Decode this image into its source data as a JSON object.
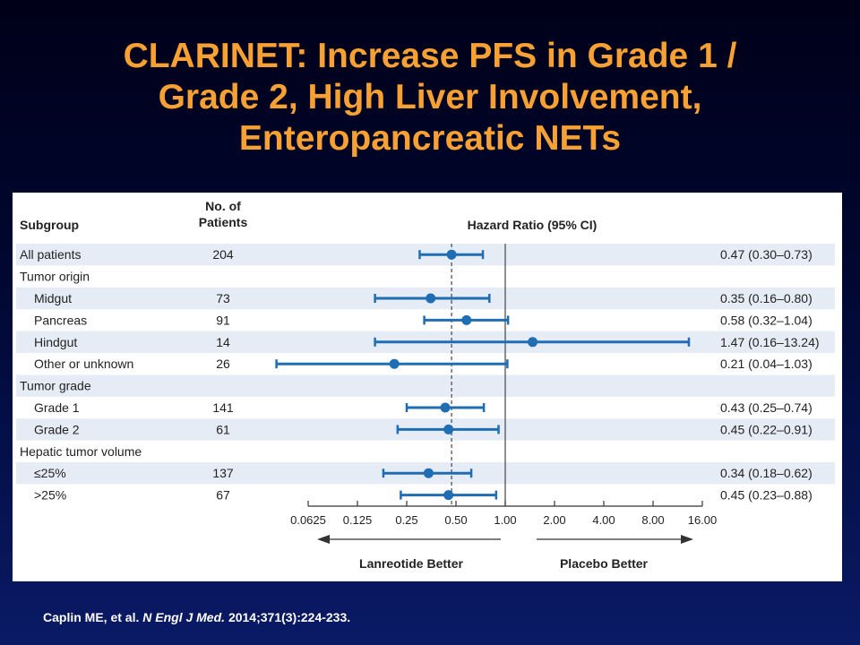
{
  "slide": {
    "title_lines": [
      "CLARINET: Increase PFS in Grade 1 /",
      "Grade 2, High Liver Involvement,",
      "Enteropancreatic NETs"
    ],
    "citation": {
      "authors": "Caplin ME, et al.",
      "journal": "N Engl J Med.",
      "details": "2014;371(3):224-233."
    }
  },
  "colors": {
    "title": "#f7a033",
    "marker": "#1f6db3",
    "stripe": "#e6ecf5",
    "background_top": "#000018",
    "background_bottom": "#0a1a66"
  },
  "chart_data": {
    "type": "forest",
    "headers": {
      "subgroup": "Subgroup",
      "patients_line1": "No. of",
      "patients_line2": "Patients",
      "hazard": "Hazard Ratio (95% CI)"
    },
    "rows": [
      {
        "label": "All patients",
        "indent": false,
        "n": "204",
        "hr": 0.47,
        "lo": 0.3,
        "hi": 0.73,
        "ci_text": "0.47 (0.30–0.73)",
        "shaded": true
      },
      {
        "label": "Tumor origin",
        "indent": false,
        "n": "",
        "hr": null,
        "lo": null,
        "hi": null,
        "ci_text": "",
        "shaded": false
      },
      {
        "label": "Midgut",
        "indent": true,
        "n": "73",
        "hr": 0.35,
        "lo": 0.16,
        "hi": 0.8,
        "ci_text": "0.35 (0.16–0.80)",
        "shaded": true
      },
      {
        "label": "Pancreas",
        "indent": true,
        "n": "91",
        "hr": 0.58,
        "lo": 0.32,
        "hi": 1.04,
        "ci_text": "0.58 (0.32–1.04)",
        "shaded": false
      },
      {
        "label": "Hindgut",
        "indent": true,
        "n": "14",
        "hr": 1.47,
        "lo": 0.16,
        "hi": 13.24,
        "ci_text": "1.47 (0.16–13.24)",
        "shaded": true
      },
      {
        "label": "Other or unknown",
        "indent": true,
        "n": "26",
        "hr": 0.21,
        "lo": 0.04,
        "hi": 1.03,
        "ci_text": "0.21 (0.04–1.03)",
        "shaded": false
      },
      {
        "label": "Tumor grade",
        "indent": false,
        "n": "",
        "hr": null,
        "lo": null,
        "hi": null,
        "ci_text": "",
        "shaded": true
      },
      {
        "label": "Grade 1",
        "indent": true,
        "n": "141",
        "hr": 0.43,
        "lo": 0.25,
        "hi": 0.74,
        "ci_text": "0.43 (0.25–0.74)",
        "shaded": false
      },
      {
        "label": "Grade 2",
        "indent": true,
        "n": "61",
        "hr": 0.45,
        "lo": 0.22,
        "hi": 0.91,
        "ci_text": "0.45 (0.22–0.91)",
        "shaded": true
      },
      {
        "label": "Hepatic tumor volume",
        "indent": false,
        "n": "",
        "hr": null,
        "lo": null,
        "hi": null,
        "ci_text": "",
        "shaded": false
      },
      {
        "label": "≤25%",
        "indent": true,
        "n": "137",
        "hr": 0.34,
        "lo": 0.18,
        "hi": 0.62,
        "ci_text": "0.34 (0.18–0.62)",
        "shaded": true
      },
      {
        "label": ">25%",
        "indent": true,
        "n": "67",
        "hr": 0.45,
        "lo": 0.23,
        "hi": 0.88,
        "ci_text": "0.45 (0.23–0.88)",
        "shaded": false
      }
    ],
    "x_scale": "log2",
    "x_range": [
      0.0625,
      16
    ],
    "x_ticks": [
      {
        "value": 0.0625,
        "label": "0.0625"
      },
      {
        "value": 0.125,
        "label": "0.125"
      },
      {
        "value": 0.25,
        "label": "0.25"
      },
      {
        "value": 0.5,
        "label": "0.50"
      },
      {
        "value": 1,
        "label": "1.00"
      },
      {
        "value": 2,
        "label": "2.00"
      },
      {
        "value": 4,
        "label": "4.00"
      },
      {
        "value": 8,
        "label": "8.00"
      },
      {
        "value": 16,
        "label": "16.00"
      }
    ],
    "reference_line": 1.0,
    "overall_line": 0.47,
    "direction_left": "Lanreotide Better",
    "direction_right": "Placebo Better"
  }
}
